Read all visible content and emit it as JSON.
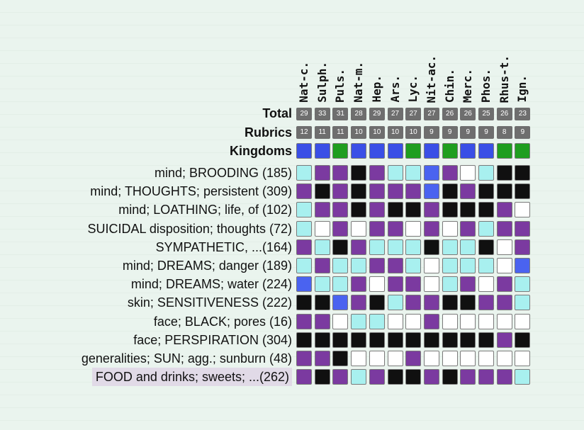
{
  "remedies": [
    "Nat-c.",
    "Sulph.",
    "Puls.",
    "Nat-m.",
    "Hep.",
    "Ars.",
    "Lyc.",
    "Nit-ac.",
    "Chin.",
    "Merc.",
    "Phos.",
    "Rhus-t.",
    "Ign."
  ],
  "labels": {
    "total": "Total",
    "rubrics": "Rubrics",
    "kingdoms": "Kingdoms"
  },
  "totals": [
    "29",
    "33",
    "31",
    "28",
    "29",
    "27",
    "27",
    "27",
    "26",
    "26",
    "25",
    "26",
    "23"
  ],
  "rubric_counts": [
    "12",
    "11",
    "11",
    "10",
    "10",
    "10",
    "10",
    "9",
    "9",
    "9",
    "9",
    "8",
    "9"
  ],
  "kingdoms": [
    "mineral",
    "mineral",
    "plant",
    "mineral",
    "mineral",
    "mineral",
    "plant",
    "mineral",
    "plant",
    "mineral",
    "mineral",
    "plant",
    "plant"
  ],
  "kingdom_colors": {
    "mineral": "#3a4fe6",
    "plant": "#1f9e1f"
  },
  "grade_colors": {
    "0": "#ffffff",
    "1": "#a8f0ef",
    "2": "#7b3aa0",
    "3": "#101010",
    "4": "#4a63f0"
  },
  "rubrics": [
    {
      "label": "mind; BROODING (185)",
      "grades": [
        1,
        2,
        2,
        3,
        2,
        1,
        1,
        4,
        2,
        0,
        1,
        3,
        3
      ]
    },
    {
      "label": "mind; THOUGHTS; persistent (309)",
      "grades": [
        2,
        3,
        2,
        3,
        2,
        2,
        2,
        4,
        3,
        2,
        3,
        3,
        3
      ]
    },
    {
      "label": "mind; LOATHING; life, of (102)",
      "grades": [
        1,
        2,
        2,
        3,
        2,
        3,
        3,
        2,
        3,
        3,
        3,
        2,
        0
      ]
    },
    {
      "label": "SUICIDAL disposition; thoughts (72)",
      "grades": [
        1,
        0,
        2,
        0,
        2,
        2,
        0,
        2,
        0,
        2,
        1,
        2,
        2
      ]
    },
    {
      "label": "SYMPATHETIC, ...(164)",
      "grades": [
        2,
        1,
        3,
        2,
        1,
        1,
        1,
        3,
        1,
        1,
        3,
        0,
        2
      ]
    },
    {
      "label": "mind; DREAMS; danger (189)",
      "grades": [
        1,
        2,
        1,
        1,
        2,
        2,
        1,
        0,
        1,
        1,
        1,
        0,
        4
      ]
    },
    {
      "label": "mind; DREAMS; water (224)",
      "grades": [
        4,
        1,
        1,
        2,
        0,
        2,
        2,
        0,
        1,
        2,
        0,
        2,
        1
      ]
    },
    {
      "label": "skin; SENSITIVENESS (222)",
      "grades": [
        3,
        3,
        4,
        2,
        3,
        1,
        2,
        2,
        3,
        3,
        2,
        2,
        1
      ]
    },
    {
      "label": "face; BLACK; pores (16)",
      "grades": [
        2,
        2,
        0,
        1,
        1,
        0,
        0,
        2,
        0,
        0,
        0,
        0,
        0
      ]
    },
    {
      "label": "face; PERSPIRATION (304)",
      "grades": [
        3,
        3,
        3,
        3,
        3,
        3,
        3,
        3,
        3,
        3,
        3,
        2,
        3
      ]
    },
    {
      "label": "generalities; SUN; agg.; sunburn (48)",
      "grades": [
        2,
        2,
        3,
        0,
        0,
        0,
        2,
        0,
        0,
        0,
        0,
        0,
        0
      ]
    },
    {
      "label": "FOOD and drinks; sweets; ...(262)",
      "grades": [
        2,
        3,
        2,
        1,
        2,
        3,
        3,
        2,
        3,
        2,
        2,
        2,
        1
      ],
      "selected": true
    }
  ]
}
